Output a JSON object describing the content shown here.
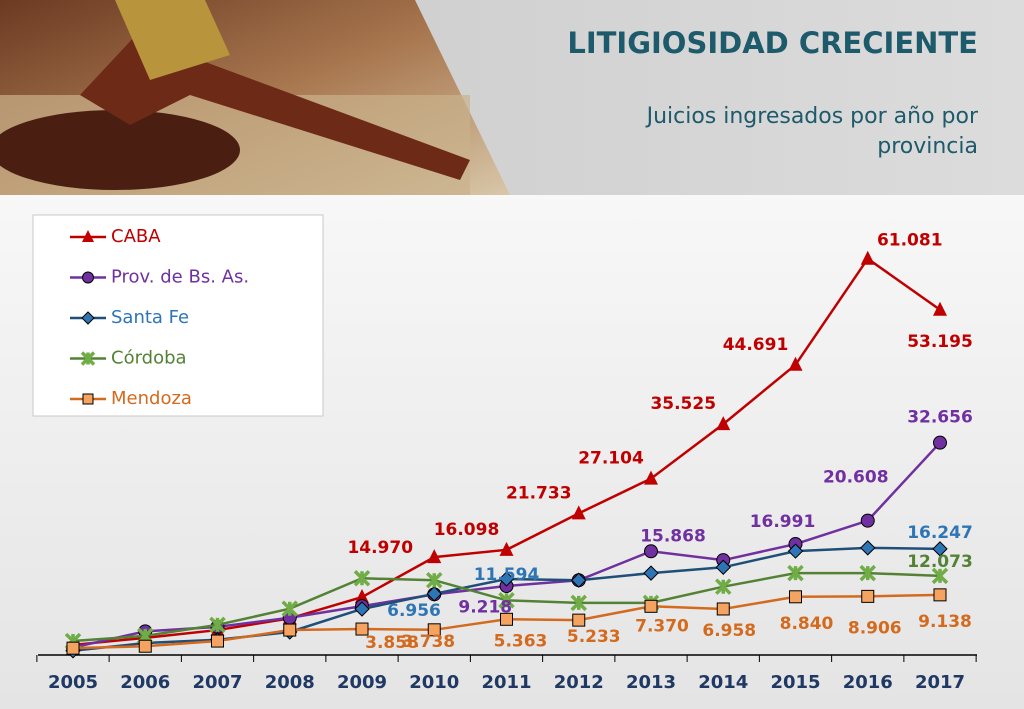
{
  "chart_data": {
    "type": "line",
    "title": "LITIGIOSIDAD CRECIENTE",
    "subtitle": "Juicios ingresados por año por provincia",
    "categories": [
      "2005",
      "2006",
      "2007",
      "2008",
      "2009",
      "2010",
      "2011",
      "2012",
      "2013",
      "2014",
      "2015",
      "2016",
      "2017"
    ],
    "ylim": [
      0,
      70000
    ],
    "legend": "top-left",
    "series": [
      {
        "name": "CABA",
        "color": "#c00000",
        "marker": "triangle",
        "values": [
          1400,
          2500,
          3700,
          5500,
          8800,
          14970,
          16098,
          21733,
          27104,
          35525,
          44691,
          61081,
          53195
        ],
        "value_labels": [
          null,
          null,
          null,
          null,
          null,
          "14.970",
          "16.098",
          "21.733",
          "27.104",
          "35.525",
          "44.691",
          "61.081",
          "53.195"
        ]
      },
      {
        "name": "Prov. de Bs. As.",
        "color": "#7030a0",
        "marker": "circle",
        "values": [
          1000,
          3500,
          4200,
          5600,
          7400,
          9218,
          10500,
          11400,
          15868,
          14500,
          16991,
          20608,
          32656
        ],
        "value_labels": [
          null,
          null,
          null,
          null,
          null,
          "9.218",
          null,
          null,
          "15.868",
          null,
          "16.991",
          "20.608",
          "32.656"
        ]
      },
      {
        "name": "Santa Fe",
        "color": "#1f4e79",
        "marker": "diamond",
        "marker_color": "#2e75b6",
        "label_color": "#2e75b6",
        "values": [
          500,
          1700,
          2200,
          3400,
          6956,
          9300,
          11594,
          11400,
          12500,
          13400,
          15900,
          16400,
          16247
        ],
        "value_labels": [
          null,
          null,
          null,
          null,
          "6.956",
          null,
          "11.594",
          null,
          null,
          null,
          null,
          null,
          "16.247"
        ]
      },
      {
        "name": "Córdoba",
        "color": "#548235",
        "marker": "x",
        "marker_color": "#70ad47",
        "values": [
          2000,
          2800,
          4500,
          7000,
          11700,
          11400,
          8300,
          7900,
          7900,
          10400,
          12500,
          12500,
          12073
        ],
        "value_labels": [
          null,
          null,
          null,
          null,
          null,
          null,
          null,
          null,
          null,
          null,
          null,
          null,
          "12.073"
        ]
      },
      {
        "name": "Mendoza",
        "color": "#d46a1e",
        "marker": "square",
        "marker_color": "#f4a460",
        "values": [
          900,
          1200,
          2000,
          3700,
          3858,
          3738,
          5363,
          5233,
          7370,
          6958,
          8840,
          8906,
          9138
        ],
        "value_labels": [
          null,
          null,
          null,
          null,
          "3.858",
          "3.738",
          "5.363",
          "5.233",
          "7.370",
          "6.958",
          "8.840",
          "8.906",
          "9.138"
        ]
      }
    ]
  }
}
